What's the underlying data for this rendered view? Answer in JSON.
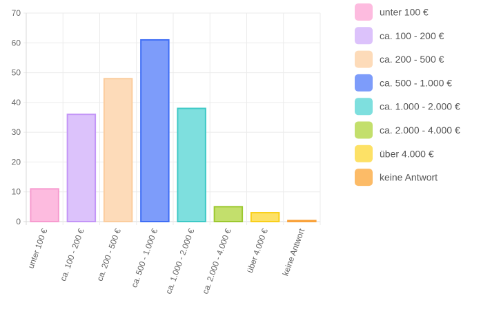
{
  "chart_data": {
    "type": "bar",
    "categories": [
      "unter 100 €",
      "ca. 100 - 200 €",
      "ca. 200 - 500 €",
      "ca. 500 - 1.000 €",
      "ca. 1.000 - 2.000 €",
      "ca. 2.000 - 4.000 €",
      "über 4.000 €",
      "keine Antwort"
    ],
    "values": [
      11,
      36,
      48,
      61,
      38,
      5,
      3,
      0.3
    ],
    "title": "",
    "xlabel": "",
    "ylabel": "",
    "ylim": [
      0,
      70
    ],
    "yticks": [
      0,
      10,
      20,
      30,
      40,
      50,
      60,
      70
    ],
    "grid": true,
    "legend_position": "right",
    "colors": {
      "fill": [
        "#fdbbdf",
        "#dcc2fb",
        "#fddbb9",
        "#7d9cfa",
        "#7edfde",
        "#c3df6c",
        "#fde166",
        "#fcbb67"
      ],
      "border": [
        "#f79bcf",
        "#c395f7",
        "#fbcd9e",
        "#3f6ef5",
        "#3ec9c6",
        "#9cc82f",
        "#f9cf1a",
        "#f9a23a"
      ],
      "grid": "#ebebeb",
      "axis": "#d9d9d9"
    }
  }
}
